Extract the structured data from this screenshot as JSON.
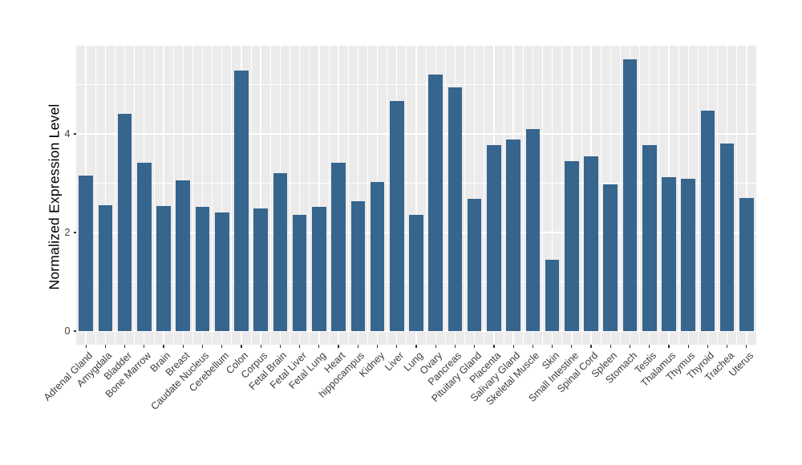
{
  "figure": {
    "background_color": "#FFFFFF"
  },
  "chart_data": {
    "type": "bar",
    "title": "",
    "xlabel": "",
    "ylabel": "Normalized Expression Level",
    "categories": [
      "Adrenal Gland",
      "Amygdala",
      "Bladder",
      "Bone Marrow",
      "Brain",
      "Breast",
      "Caudate Nucleus",
      "Cerebellum",
      "Colon",
      "Corpus",
      "Fetal Brain",
      "Fetal Liver",
      "Fetal Lung",
      "Heart",
      "hippocampus",
      "Kidney",
      "Liver",
      "Lung",
      "Ovary",
      "Pancreas",
      "Pituitary Gland",
      "Placenta",
      "Salivary Gland",
      "Skeletal Muscle",
      "Skin",
      "Small Intestine",
      "Spinal Cord",
      "Spleen",
      "Stomach",
      "Testis",
      "Thalamus",
      "Thymus",
      "Thyroid",
      "Trachea",
      "Uterus"
    ],
    "values": [
      3.15,
      2.56,
      4.4,
      3.41,
      2.53,
      3.06,
      2.52,
      2.41,
      5.29,
      2.48,
      3.2,
      2.35,
      2.52,
      3.41,
      2.64,
      3.02,
      4.67,
      2.36,
      5.2,
      4.95,
      2.68,
      3.77,
      3.89,
      4.1,
      1.45,
      3.45,
      3.55,
      2.98,
      5.52,
      3.78,
      3.13,
      3.09,
      4.47,
      3.8,
      2.7
    ],
    "ylim": [
      -0.29,
      5.8
    ],
    "yticks": [
      0,
      2,
      4
    ],
    "ytick_labels": [
      "0",
      "2",
      "4"
    ],
    "minor_gridlines_y": [
      1,
      3,
      5
    ],
    "grid": true,
    "legend": "none",
    "x_label_angle_deg": 45,
    "colors": {
      "bar_fill": "#36658E",
      "panel_background": "#EBEBEB",
      "gridline": "#FFFFFF",
      "tick_mark": "#333333",
      "axis_text": "#3C3C3C",
      "axis_title": "#000000"
    }
  }
}
